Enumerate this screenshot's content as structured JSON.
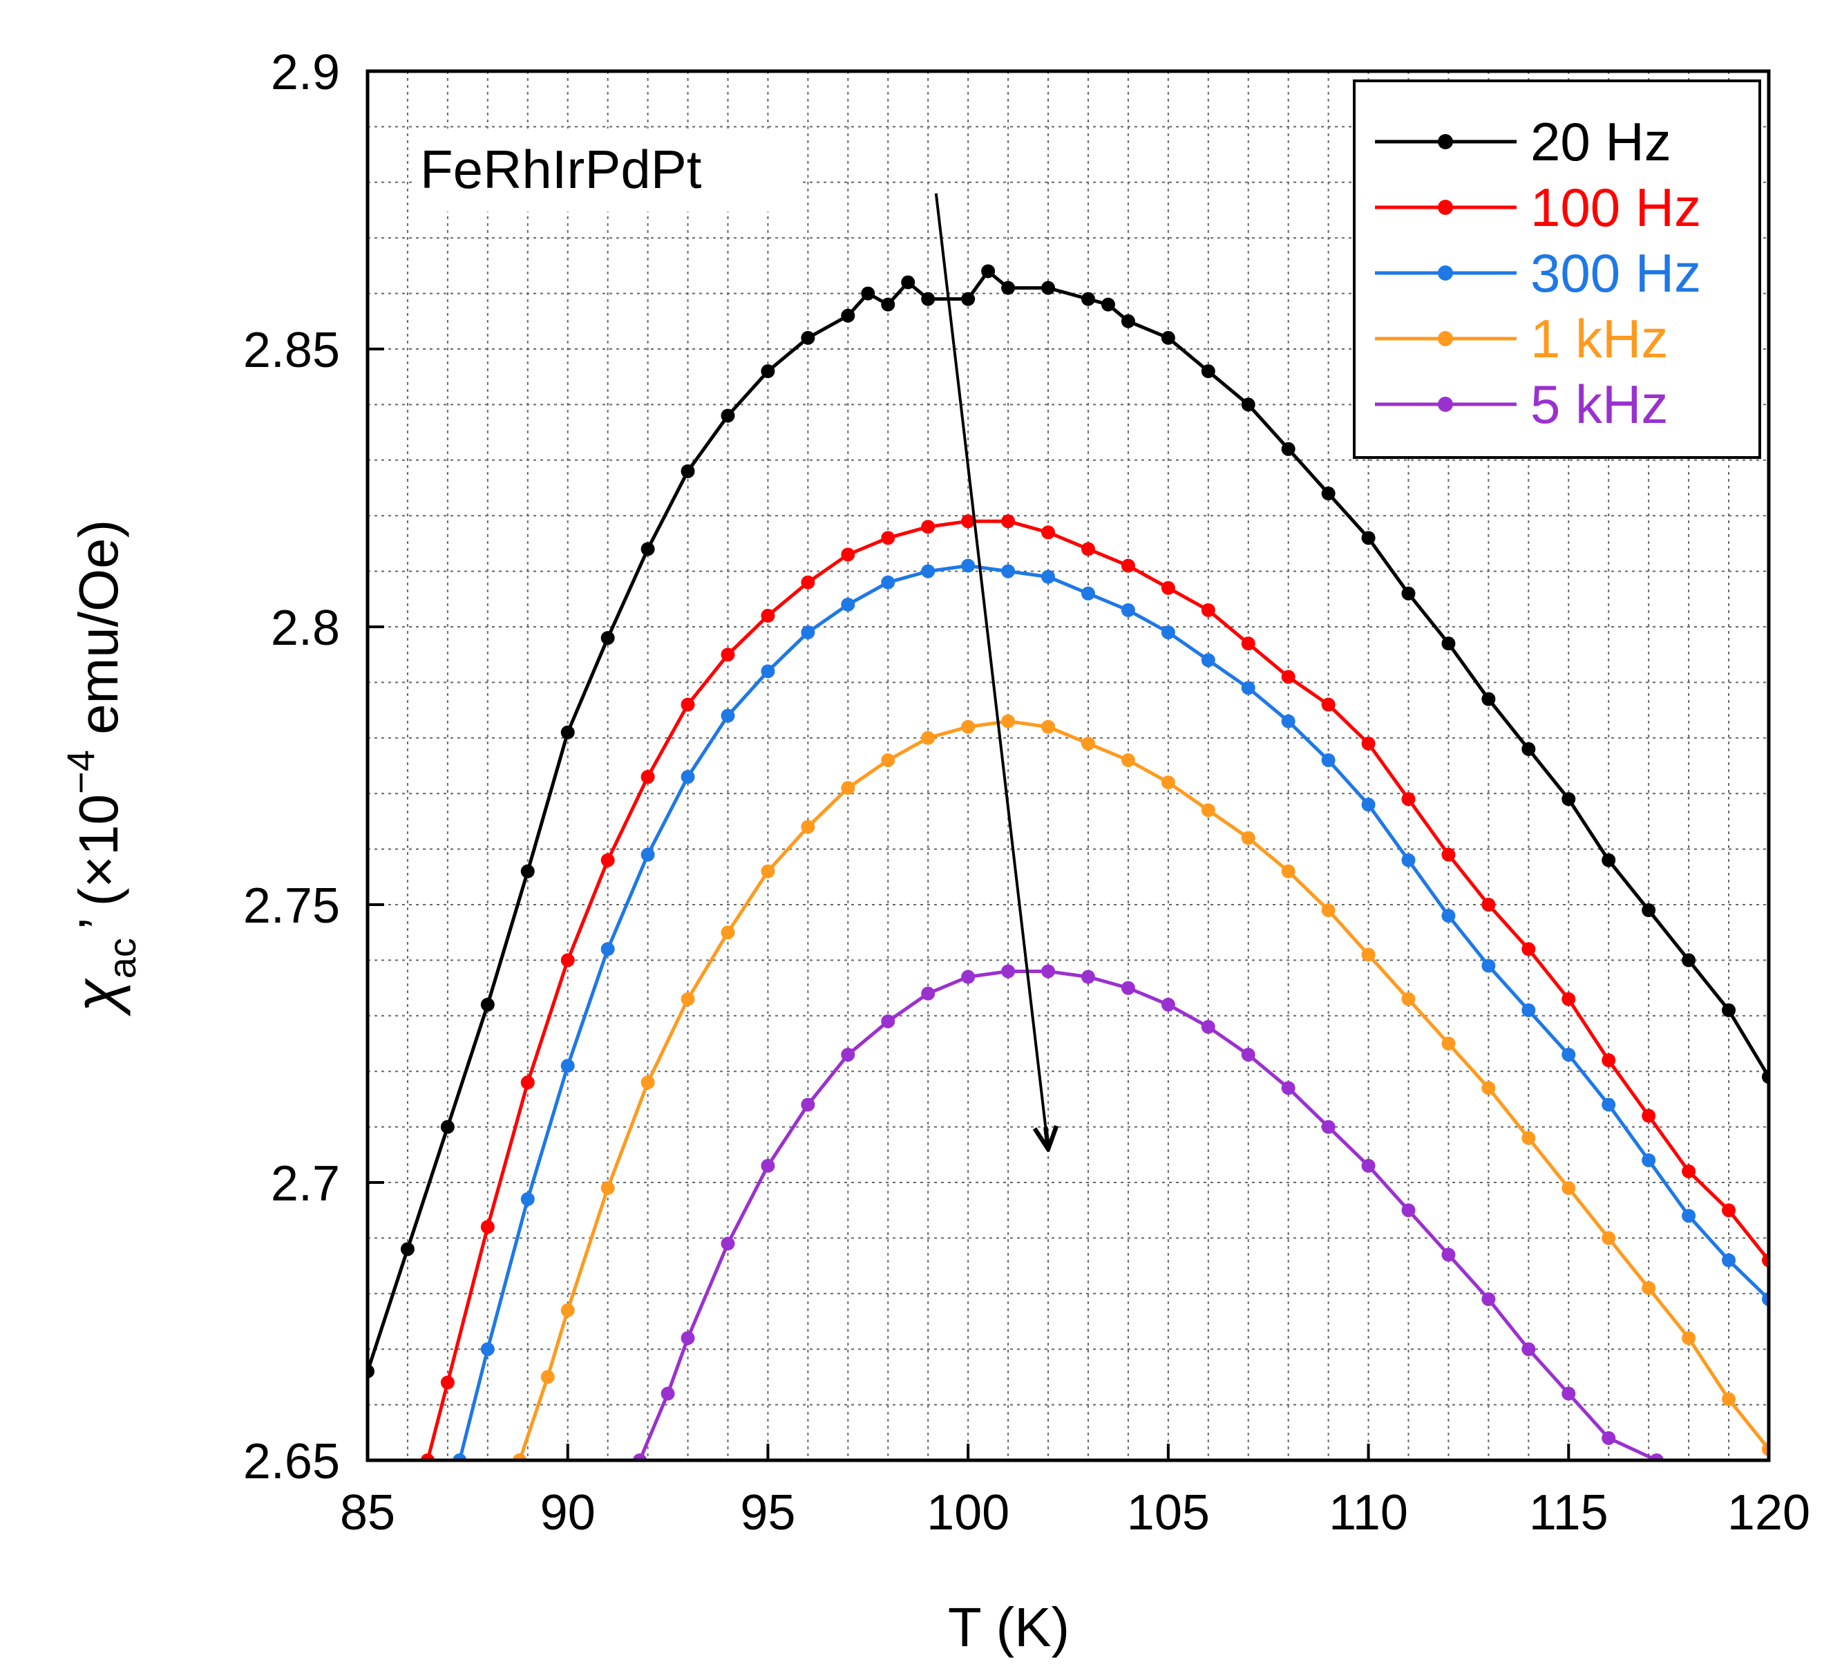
{
  "chart_data": {
    "type": "line",
    "annotation": "FeRhIrPdPt",
    "xlabel": "T (K)",
    "ylabel": {
      "symbol": "χ",
      "subscript": "ac",
      "prime": "’",
      "units_pre": "(×10",
      "units_exp": "−4",
      "units_post": " emu/Oe)"
    },
    "xlim": [
      85,
      120
    ],
    "ylim": [
      2.65,
      2.9
    ],
    "xticks": [
      85,
      90,
      95,
      100,
      105,
      110,
      115,
      120
    ],
    "xtick_labels": [
      "85",
      "90",
      "95",
      "100",
      "105",
      "110",
      "115",
      "120"
    ],
    "yticks": [
      2.65,
      2.7,
      2.75,
      2.8,
      2.85,
      2.9
    ],
    "ytick_labels": [
      "2.65",
      "2.7",
      "2.75",
      "2.8",
      "2.85",
      "2.9"
    ],
    "grid": true,
    "legend_position": "top-right",
    "arrow": {
      "from": [
        99.2,
        2.878
      ],
      "to": [
        102.0,
        2.706
      ]
    },
    "series": [
      {
        "name": "20 Hz",
        "color": "#000000",
        "x": [
          85.0,
          86.0,
          87.0,
          88.0,
          89.0,
          90.0,
          91.0,
          92.0,
          93.0,
          94.0,
          95.0,
          96.0,
          97.0,
          97.5,
          98.0,
          98.5,
          99.0,
          100.0,
          100.5,
          101.0,
          102.0,
          103.0,
          103.5,
          104.0,
          105.0,
          106.0,
          107.0,
          108.0,
          109.0,
          110.0,
          111.0,
          112.0,
          113.0,
          114.0,
          115.0,
          116.0,
          117.0,
          118.0,
          119.0,
          120.0
        ],
        "values": [
          2.666,
          2.688,
          2.71,
          2.732,
          2.756,
          2.781,
          2.798,
          2.814,
          2.828,
          2.838,
          2.846,
          2.852,
          2.856,
          2.86,
          2.858,
          2.862,
          2.859,
          2.859,
          2.864,
          2.861,
          2.861,
          2.859,
          2.858,
          2.855,
          2.852,
          2.846,
          2.84,
          2.832,
          2.824,
          2.816,
          2.806,
          2.797,
          2.787,
          2.778,
          2.769,
          2.758,
          2.749,
          2.74,
          2.731,
          2.719
        ]
      },
      {
        "name": "100 Hz",
        "color": "#ff0000",
        "x": [
          86.5,
          87.0,
          88.0,
          89.0,
          90.0,
          91.0,
          92.0,
          93.0,
          94.0,
          95.0,
          96.0,
          97.0,
          98.0,
          99.0,
          100.0,
          101.0,
          102.0,
          103.0,
          104.0,
          105.0,
          106.0,
          107.0,
          108.0,
          109.0,
          110.0,
          111.0,
          112.0,
          113.0,
          114.0,
          115.0,
          116.0,
          117.0,
          118.0,
          119.0,
          120.0
        ],
        "values": [
          2.65,
          2.664,
          2.692,
          2.718,
          2.74,
          2.758,
          2.773,
          2.786,
          2.795,
          2.802,
          2.808,
          2.813,
          2.816,
          2.818,
          2.819,
          2.819,
          2.817,
          2.814,
          2.811,
          2.807,
          2.803,
          2.797,
          2.791,
          2.786,
          2.779,
          2.769,
          2.759,
          2.75,
          2.742,
          2.733,
          2.722,
          2.712,
          2.702,
          2.695,
          2.686
        ]
      },
      {
        "name": "300 Hz",
        "color": "#1e78e6",
        "x": [
          87.3,
          88.0,
          89.0,
          90.0,
          91.0,
          92.0,
          93.0,
          94.0,
          95.0,
          96.0,
          97.0,
          98.0,
          99.0,
          100.0,
          101.0,
          102.0,
          103.0,
          104.0,
          105.0,
          106.0,
          107.0,
          108.0,
          109.0,
          110.0,
          111.0,
          112.0,
          113.0,
          114.0,
          115.0,
          116.0,
          117.0,
          118.0,
          119.0,
          120.0
        ],
        "values": [
          2.65,
          2.67,
          2.697,
          2.721,
          2.742,
          2.759,
          2.773,
          2.784,
          2.792,
          2.799,
          2.804,
          2.808,
          2.81,
          2.811,
          2.81,
          2.809,
          2.806,
          2.803,
          2.799,
          2.794,
          2.789,
          2.783,
          2.776,
          2.768,
          2.758,
          2.748,
          2.739,
          2.731,
          2.723,
          2.714,
          2.704,
          2.694,
          2.686,
          2.679
        ]
      },
      {
        "name": "1 kHz",
        "color": "#ff9a1e",
        "x": [
          88.8,
          89.5,
          90.0,
          91.0,
          92.0,
          93.0,
          94.0,
          95.0,
          96.0,
          97.0,
          98.0,
          99.0,
          100.0,
          101.0,
          102.0,
          103.0,
          104.0,
          105.0,
          106.0,
          107.0,
          108.0,
          109.0,
          110.0,
          111.0,
          112.0,
          113.0,
          114.0,
          115.0,
          116.0,
          117.0,
          118.0,
          119.0,
          120.0
        ],
        "values": [
          2.65,
          2.665,
          2.677,
          2.699,
          2.718,
          2.733,
          2.745,
          2.756,
          2.764,
          2.771,
          2.776,
          2.78,
          2.782,
          2.783,
          2.782,
          2.779,
          2.776,
          2.772,
          2.767,
          2.762,
          2.756,
          2.749,
          2.741,
          2.733,
          2.725,
          2.717,
          2.708,
          2.699,
          2.69,
          2.681,
          2.672,
          2.661,
          2.652
        ]
      },
      {
        "name": "5 kHz",
        "color": "#9b30d0",
        "x": [
          91.8,
          92.5,
          93.0,
          94.0,
          95.0,
          96.0,
          97.0,
          98.0,
          99.0,
          100.0,
          101.0,
          102.0,
          103.0,
          104.0,
          105.0,
          106.0,
          107.0,
          108.0,
          109.0,
          110.0,
          111.0,
          112.0,
          113.0,
          114.0,
          115.0,
          116.0,
          117.2
        ],
        "values": [
          2.65,
          2.662,
          2.672,
          2.689,
          2.703,
          2.714,
          2.723,
          2.729,
          2.734,
          2.737,
          2.738,
          2.738,
          2.737,
          2.735,
          2.732,
          2.728,
          2.723,
          2.717,
          2.71,
          2.703,
          2.695,
          2.687,
          2.679,
          2.67,
          2.662,
          2.654,
          2.65
        ]
      }
    ]
  }
}
